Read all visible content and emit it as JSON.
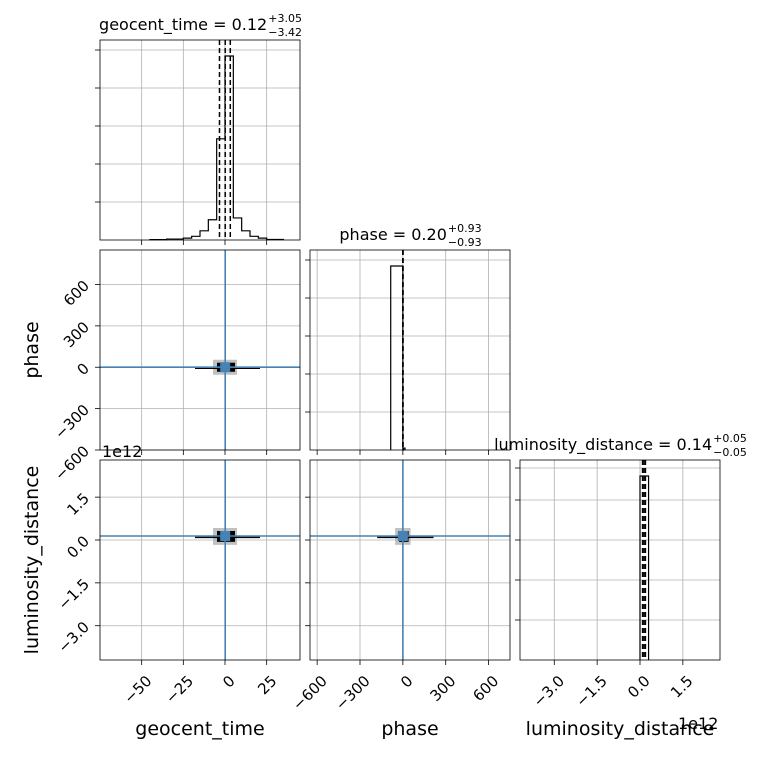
{
  "chart_data": [
    {
      "type": "histogram",
      "panel": "geocent_time-1d",
      "title": {
        "param": "geocent_time",
        "median": "0.12",
        "plus": "+3.05",
        "minus": "−3.42"
      },
      "bins": [
        [
          -45,
          -35,
          0.002
        ],
        [
          -35,
          -25,
          0.005
        ],
        [
          -25,
          -20,
          0.01
        ],
        [
          -20,
          -15,
          0.02
        ],
        [
          -15,
          -10,
          0.05
        ],
        [
          -10,
          -5,
          0.11
        ],
        [
          -5,
          0,
          0.55
        ],
        [
          0,
          5,
          1.0
        ],
        [
          5,
          10,
          0.12
        ],
        [
          10,
          15,
          0.05
        ],
        [
          15,
          20,
          0.02
        ],
        [
          20,
          25,
          0.01
        ],
        [
          25,
          35,
          0.003
        ]
      ],
      "quantiles": [
        -3.3,
        0.12,
        3.17
      ],
      "xlim": [
        -75,
        45
      ],
      "grid": true
    },
    {
      "type": "histogram",
      "panel": "phase-1d",
      "title": {
        "param": "phase",
        "median": "0.20",
        "plus": "+0.93",
        "minus": "−0.93"
      },
      "bins": [
        [
          -85,
          -5,
          1.0
        ],
        [
          -5,
          0,
          1.0
        ],
        [
          0,
          5,
          0.0
        ],
        [
          5,
          15,
          0.01
        ]
      ],
      "quantiles": [
        -0.73,
        0.2,
        1.13
      ],
      "xlim": [
        -650,
        750
      ],
      "grid": true
    },
    {
      "type": "histogram",
      "panel": "luminosity_distance-1d",
      "title": {
        "param": "luminosity_distance",
        "median": "0.14",
        "plus": "+0.05",
        "minus": "−0.05"
      },
      "bins": [
        [
          0.0,
          0.3,
          1.0
        ]
      ],
      "quantiles": [
        0.09,
        0.14,
        0.19
      ],
      "xlim": [
        -4.2,
        2.8
      ],
      "offset": "1e12",
      "grid": true
    },
    {
      "type": "scatter",
      "panel": "geocent_time-vs-phase",
      "xlim": [
        -75,
        45
      ],
      "ylim": [
        -600,
        850
      ],
      "crosshair": {
        "x": 0.12,
        "y": 0.2
      },
      "density_blob": {
        "x": [
          -6,
          6
        ],
        "y": [
          -40,
          40
        ]
      }
    },
    {
      "type": "scatter",
      "panel": "geocent_time-vs-luminosity_distance",
      "xlim": [
        -75,
        45
      ],
      "ylim": [
        -4.2,
        2.8
      ],
      "crosshair": {
        "x": 0.12,
        "y": 0.14
      },
      "density_blob": {
        "x": [
          -6,
          6
        ],
        "y": [
          -0.1,
          0.35
        ]
      }
    },
    {
      "type": "scatter",
      "panel": "phase-vs-luminosity_distance",
      "xlim": [
        -650,
        750
      ],
      "ylim": [
        -4.2,
        2.8
      ],
      "crosshair": {
        "x": 0.2,
        "y": 0.14
      },
      "density_blob": {
        "x": [
          -40,
          40
        ],
        "y": [
          -0.1,
          0.35
        ]
      }
    }
  ],
  "axes": {
    "x": [
      {
        "label": "geocent_time",
        "ticks": [
          -50,
          -25,
          0,
          25
        ],
        "tick_labels": [
          "−50",
          "−25",
          "0",
          "25"
        ]
      },
      {
        "label": "phase",
        "ticks": [
          -600,
          -300,
          0,
          300,
          600
        ],
        "tick_labels": [
          "−600",
          "−300",
          "0",
          "300",
          "600"
        ]
      },
      {
        "label": "luminosity_distance",
        "ticks": [
          -3.0,
          -1.5,
          0.0,
          1.5
        ],
        "tick_labels": [
          "−3.0",
          "−1.5",
          "0.0",
          "1.5"
        ],
        "offset": "1e12"
      }
    ],
    "y": [
      {
        "label": "phase",
        "ticks": [
          -600,
          -300,
          0,
          300,
          600
        ],
        "tick_labels": [
          "−600",
          "−300",
          "0",
          "300",
          "600"
        ]
      },
      {
        "label": "luminosity_distance",
        "ticks": [
          -3.0,
          -1.5,
          0.0,
          1.5
        ],
        "tick_labels": [
          "−3.0",
          "−1.5",
          "0.0",
          "1.5"
        ],
        "offset": "1e12"
      }
    ]
  },
  "colors": {
    "crosshair": "#4682b4",
    "hist": "#000000",
    "grid": "#b0b0b0",
    "blob_dark": "#000000",
    "blob_light": "#b0b0b0"
  }
}
